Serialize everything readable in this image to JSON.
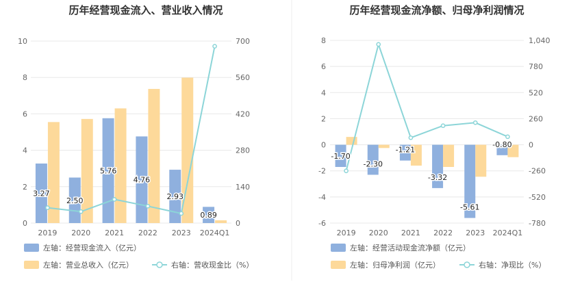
{
  "chart_data": [
    {
      "type": "bar",
      "title": "历年经营现金流入、营业收入情况",
      "categories": [
        "2019",
        "2020",
        "2021",
        "2022",
        "2023",
        "2024Q1"
      ],
      "left_axis": {
        "ticks": [
          "0",
          "2",
          "4",
          "6",
          "8",
          "10"
        ],
        "ylim": [
          0,
          10
        ]
      },
      "right_axis": {
        "ticks": [
          "0",
          "140",
          "280",
          "420",
          "560",
          "700"
        ],
        "ylim": [
          0,
          700
        ]
      },
      "series": [
        {
          "name": "左轴：经营现金流入（亿元）",
          "kind": "bar",
          "axis": "left",
          "color": "#8fb0de",
          "values": [
            3.27,
            2.5,
            5.76,
            4.76,
            2.93,
            0.89
          ],
          "labels": [
            "3.27",
            "2.50",
            "5.76",
            "4.76",
            "2.93",
            "0.89"
          ]
        },
        {
          "name": "左轴：营业总收入（亿元）",
          "kind": "bar",
          "axis": "left",
          "color": "#fdd99a",
          "values": [
            5.55,
            5.72,
            6.3,
            7.37,
            7.99,
            0.15
          ]
        },
        {
          "name": "右轴：营收现金比（%）",
          "kind": "line",
          "axis": "right",
          "color": "#8cd5d8",
          "values": [
            59,
            44,
            91,
            65,
            37,
            680
          ]
        }
      ]
    },
    {
      "type": "bar",
      "title": "历年经营现金流净额、归母净利润情况",
      "categories": [
        "2019",
        "2020",
        "2021",
        "2022",
        "2023",
        "2024Q1"
      ],
      "left_axis": {
        "ticks": [
          "-6",
          "-4",
          "-2",
          "0",
          "2",
          "4",
          "6",
          "8"
        ],
        "ylim": [
          -6,
          8
        ]
      },
      "right_axis": {
        "ticks": [
          "-780",
          "-520",
          "-260",
          "0",
          "260",
          "520",
          "780",
          "1,040"
        ],
        "ylim": [
          -780,
          1040
        ]
      },
      "series": [
        {
          "name": "左轴：经营活动现金流净额（亿元）",
          "kind": "bar",
          "axis": "left",
          "color": "#8fb0de",
          "values": [
            -1.7,
            -2.3,
            -1.21,
            -3.32,
            -5.61,
            -0.8
          ],
          "labels": [
            "-1.70",
            "-2.30",
            "-1.21",
            "-3.32",
            "-5.61",
            "-0.80"
          ]
        },
        {
          "name": "归母净利润（亿元）",
          "kind": "bar",
          "axis": "left",
          "color": "#fdd99a",
          "values": [
            0.6,
            -0.25,
            -1.6,
            -1.7,
            -2.45,
            -0.95
          ]
        },
        {
          "name": "右轴：净现比（%）",
          "kind": "line",
          "axis": "right",
          "color": "#8cd5d8",
          "values": [
            -260,
            1000,
            70,
            190,
            220,
            80
          ]
        }
      ],
      "legend_prefix_second": "左轴："
    }
  ]
}
